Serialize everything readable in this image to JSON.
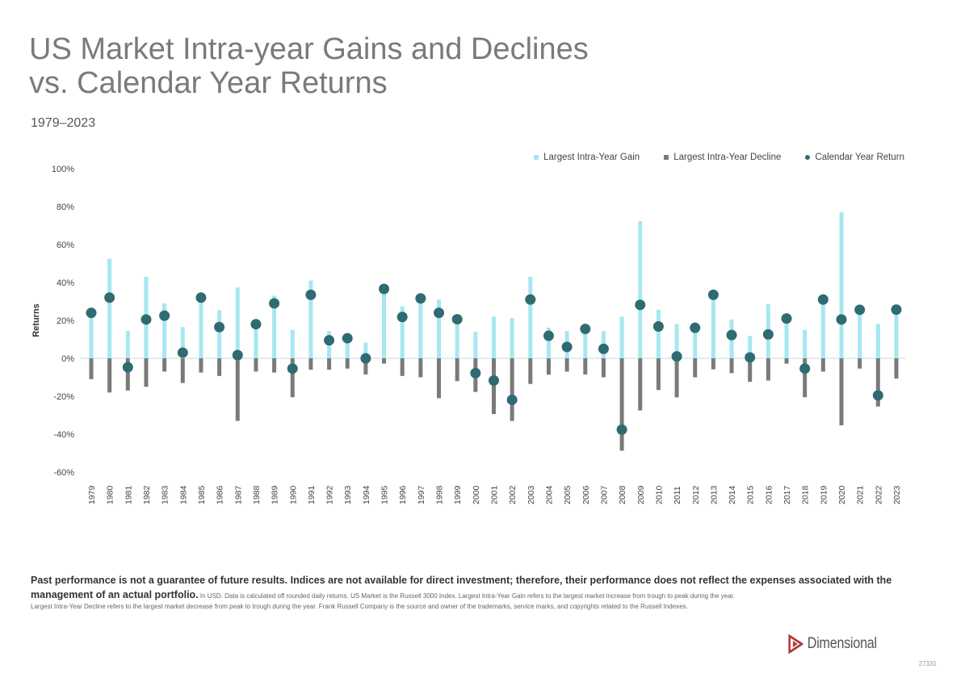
{
  "chart_data": {
    "type": "bar",
    "title": "US Market Intra-year Gains and Declines vs. Calendar Year Returns",
    "title_lines": [
      "US Market Intra-year Gains and Declines",
      "vs. Calendar Year Returns"
    ],
    "subtitle": "1979–2023",
    "ylabel": "Returns",
    "xlabel": "",
    "ylim": [
      -60,
      100
    ],
    "yticks": [
      100,
      80,
      60,
      40,
      20,
      0,
      -20,
      -40,
      -60
    ],
    "ytick_labels": [
      "100%",
      "80%",
      "60%",
      "40%",
      "20%",
      "0%",
      "-20%",
      "-40%",
      "-60%"
    ],
    "legend_position": "top-right",
    "colors": {
      "gain": "#a6e7f0",
      "decline": "#7a7a7a",
      "return": "#2f6b72"
    },
    "categories": [
      "1979",
      "1980",
      "1981",
      "1982",
      "1983",
      "1984",
      "1985",
      "1986",
      "1987",
      "1988",
      "1989",
      "1990",
      "1991",
      "1992",
      "1993",
      "1994",
      "1995",
      "1996",
      "1997",
      "1998",
      "1999",
      "2000",
      "2001",
      "2002",
      "2003",
      "2004",
      "2005",
      "2006",
      "2007",
      "2008",
      "2009",
      "2010",
      "2011",
      "2012",
      "2013",
      "2014",
      "2015",
      "2016",
      "2017",
      "2018",
      "2019",
      "2020",
      "2021",
      "2022",
      "2023"
    ],
    "series": [
      {
        "name": "Largest Intra-Year Gain",
        "type": "bar",
        "values": [
          24,
          52.5,
          14.4,
          43,
          29,
          16.5,
          32,
          25.4,
          37.4,
          18,
          33,
          15,
          41,
          14.4,
          11,
          8.3,
          36.6,
          27.4,
          33,
          31,
          21,
          14,
          22,
          21.2,
          43,
          16.2,
          14.4,
          15.5,
          14.4,
          22,
          72.3,
          25.7,
          18,
          16.1,
          33.5,
          20.5,
          11.9,
          28.5,
          21,
          15,
          31,
          77,
          25.6,
          18.2,
          25.7
        ]
      },
      {
        "name": "Largest Intra-Year Decline",
        "type": "bar",
        "values": [
          -11,
          -18,
          -17,
          -15,
          -7,
          -13,
          -7.5,
          -9.3,
          -33,
          -7,
          -7.5,
          -20.5,
          -6,
          -6,
          -5.4,
          -8.5,
          -2.8,
          -9.3,
          -10,
          -21,
          -12,
          -17.7,
          -29.4,
          -33,
          -13.5,
          -8.6,
          -7,
          -8.5,
          -10,
          -48.7,
          -27.5,
          -16.7,
          -20.6,
          -10,
          -5.8,
          -7.8,
          -12.4,
          -11.7,
          -2.8,
          -20.5,
          -7,
          -35.3,
          -5.4,
          -25.4,
          -10.7
        ]
      },
      {
        "name": "Calendar Year Return",
        "type": "scatter",
        "values": [
          24,
          32,
          -4.7,
          20.5,
          22.5,
          3,
          32,
          16.5,
          1.7,
          18,
          29,
          -5.4,
          33.5,
          9.5,
          10.6,
          0,
          36.6,
          21.8,
          31.6,
          24,
          20.6,
          -7.8,
          -11.7,
          -21.9,
          31,
          11.9,
          6,
          15.5,
          5,
          -37.6,
          28.2,
          16.8,
          1,
          16.1,
          33.5,
          12.3,
          0.5,
          12.6,
          21,
          -5.4,
          31,
          20.5,
          25.6,
          -19.5,
          25.7
        ]
      }
    ]
  },
  "footer": {
    "bold_line": "Past performance is not a guarantee of future results. Indices are not available for direct investment; therefore, their performance does not reflect the expenses associated with the management of an actual portfolio.",
    "small_text_1": " In USD. Data is calculated off rounded daily returns. US Market is the Russell 3000 Index. Largest Intra-Year Gain refers to the largest market increase from trough to peak during the year.",
    "small_text_2": "Largest Intra-Year Decline refers to the largest market decrease from peak to trough during the year. Frank Russell Company is the source and owner of the trademarks, service marks, and copyrights related to the Russell Indexes."
  },
  "logo": {
    "text": "Dimensional"
  },
  "page_code": "27331"
}
